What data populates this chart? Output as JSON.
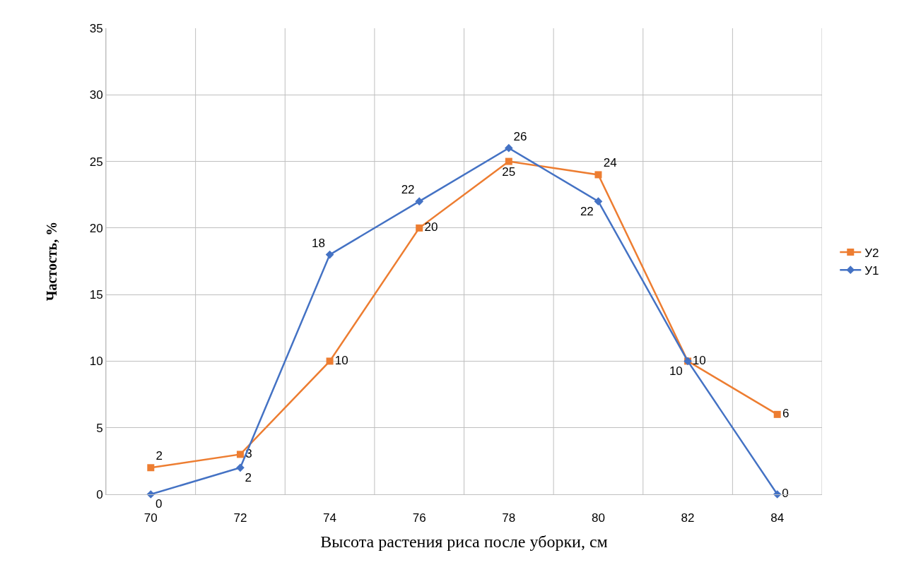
{
  "chart_data": {
    "type": "line",
    "xlabel": "Высота растения риса после уборки, см",
    "ylabel": "Частость, %",
    "categories": [
      "70",
      "72",
      "74",
      "76",
      "78",
      "80",
      "82",
      "84"
    ],
    "series": [
      {
        "name": "У2",
        "color": "#ed7d31",
        "marker": "square",
        "values": [
          2,
          3,
          10,
          20,
          25,
          24,
          10,
          6
        ]
      },
      {
        "name": "У1",
        "color": "#4472c4",
        "marker": "diamond",
        "values": [
          0,
          2,
          18,
          22,
          26,
          22,
          10,
          0
        ]
      }
    ],
    "data_labels": true,
    "ylim": [
      0,
      35
    ],
    "yticks": [
      0,
      5,
      10,
      15,
      20,
      25,
      30,
      35
    ],
    "grid": true,
    "legend": "right"
  }
}
